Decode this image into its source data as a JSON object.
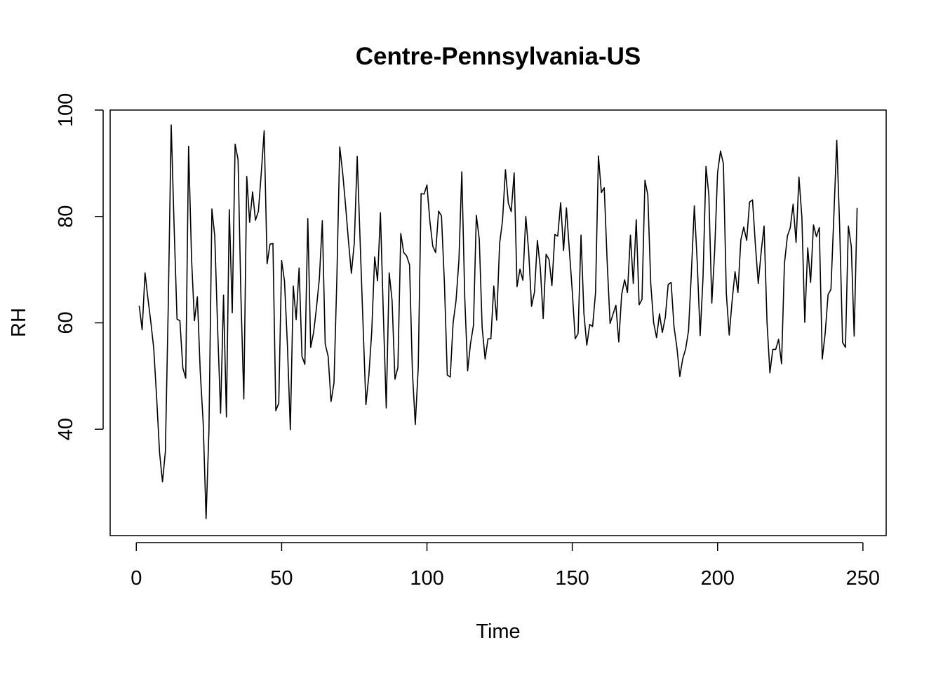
{
  "chart_data": {
    "type": "line",
    "title": "Centre-Pennsylvania-US",
    "xlabel": "Time",
    "ylabel": "RH",
    "xlim": [
      -9,
      258
    ],
    "ylim": [
      20,
      100
    ],
    "xticks": [
      0,
      50,
      100,
      150,
      200,
      250
    ],
    "yticks": [
      40,
      60,
      80,
      100
    ],
    "grid": false,
    "series": [
      {
        "x": [
          1,
          2,
          3,
          4,
          5,
          6,
          7,
          8,
          9,
          10,
          11,
          12,
          13,
          14,
          15,
          16,
          17,
          18,
          19,
          20,
          21,
          22,
          23,
          24,
          25,
          26,
          27,
          28,
          29,
          30,
          31,
          32,
          33,
          34,
          35,
          36,
          37,
          38,
          39,
          40,
          41,
          42,
          43,
          44,
          45,
          46,
          47,
          48,
          49,
          50,
          51,
          52,
          53,
          54,
          55,
          56,
          57,
          58,
          59,
          60,
          61,
          62,
          63,
          64,
          65,
          66,
          67,
          68,
          69,
          70,
          71,
          72,
          73,
          74,
          75,
          76,
          77,
          78,
          79,
          80,
          81,
          82,
          83,
          84,
          85,
          86,
          87,
          88,
          89,
          90,
          91,
          92,
          93,
          94,
          95,
          96,
          97,
          98,
          99,
          100,
          101,
          102,
          103,
          104,
          105,
          106,
          107,
          108,
          109,
          110,
          111,
          112,
          113,
          114,
          115,
          116,
          117,
          118,
          119,
          120,
          121,
          122,
          123,
          124,
          125,
          126,
          127,
          128,
          129,
          130,
          131,
          132,
          133,
          134,
          135,
          136,
          137,
          138,
          139,
          140,
          141,
          142,
          143,
          144,
          145,
          146,
          147,
          148,
          149,
          150,
          151,
          152,
          153,
          154,
          155,
          156,
          157,
          158,
          159,
          160,
          161,
          162,
          163,
          164,
          165,
          166,
          167,
          168,
          169,
          170,
          171,
          172,
          173,
          174,
          175,
          176,
          177,
          178,
          179,
          180,
          181,
          182,
          183,
          184,
          185,
          186,
          187,
          188,
          189,
          190,
          191,
          192,
          193,
          194,
          195,
          196,
          197,
          198,
          199,
          200,
          201,
          202,
          203,
          204,
          205,
          206,
          207,
          208,
          209,
          210,
          211,
          212,
          213,
          214,
          215,
          216,
          217,
          218,
          219,
          220,
          221,
          222,
          223,
          224,
          225,
          226,
          227,
          228,
          229,
          230,
          231,
          232,
          233,
          234,
          235,
          236,
          237,
          238,
          239,
          240,
          241,
          242,
          243,
          244,
          245,
          246,
          247,
          248
        ],
        "values": [
          63.2,
          58.7,
          69.4,
          64.5,
          60.1,
          55.2,
          45.8,
          35.6,
          30.1,
          35.8,
          63.2,
          97.2,
          78.4,
          60.7,
          60.4,
          51.5,
          49.6,
          93.2,
          72.1,
          60.4,
          64.9,
          50.8,
          41.2,
          23.2,
          39.8,
          81.4,
          76.3,
          58.5,
          43.0,
          65.2,
          42.3,
          81.3,
          61.9,
          93.6,
          90.7,
          64.8,
          45.7,
          87.5,
          78.9,
          84.6,
          79.3,
          81.0,
          88.2,
          96.1,
          71.1,
          74.8,
          74.9,
          43.5,
          44.9,
          71.7,
          67.8,
          55.6,
          39.9,
          66.9,
          60.6,
          70.3,
          53.7,
          52.2,
          79.6,
          55.4,
          58.2,
          62.9,
          68.4,
          79.2,
          56.0,
          53.7,
          45.2,
          48.7,
          68.3,
          93.1,
          88.2,
          82.1,
          75.3,
          69.3,
          75.1,
          91.3,
          75.6,
          59.8,
          44.6,
          50.1,
          58.3,
          72.4,
          67.9,
          80.7,
          61.5,
          44.0,
          69.4,
          64.2,
          49.4,
          51.6,
          76.8,
          73.2,
          72.6,
          70.9,
          50.7,
          40.9,
          51.6,
          84.3,
          84.2,
          85.9,
          79.1,
          74.4,
          73.2,
          81.0,
          80.1,
          67.5,
          50.2,
          49.8,
          60.0,
          64.1,
          71.8,
          88.4,
          64.7,
          51.0,
          56.1,
          59.5,
          80.2,
          75.7,
          59.1,
          53.2,
          57.0,
          57.0,
          66.9,
          60.5,
          74.9,
          79.2,
          88.8,
          82.5,
          80.9,
          88.2,
          66.8,
          70.1,
          68.0,
          80.0,
          73.4,
          63.1,
          65.8,
          75.5,
          70.3,
          60.8,
          72.9,
          71.9,
          67.0,
          76.6,
          76.3,
          82.6,
          73.6,
          81.6,
          73.6,
          66.0,
          57.0,
          58.0,
          76.5,
          61.8,
          55.8,
          59.7,
          59.3,
          65.7,
          91.4,
          84.5,
          85.4,
          71.7,
          59.9,
          61.6,
          63.3,
          56.4,
          65.3,
          68.1,
          65.7,
          76.5,
          67.4,
          79.4,
          63.4,
          64.4,
          86.8,
          84.0,
          67.3,
          60.0,
          57.2,
          61.7,
          58.2,
          61.0,
          67.2,
          67.6,
          59.3,
          55.3,
          49.9,
          53.2,
          55.1,
          58.5,
          69.8,
          82.0,
          71.4,
          57.6,
          68.6,
          89.4,
          84.0,
          63.7,
          73.6,
          88.2,
          92.3,
          89.9,
          65.5,
          57.7,
          64.2,
          69.6,
          65.7,
          75.6,
          78.0,
          75.5,
          82.7,
          83.1,
          74.7,
          67.4,
          73.4,
          78.2,
          60.1,
          50.6,
          55.0,
          55.0,
          56.9,
          52.3,
          71.1,
          76.3,
          77.9,
          82.3,
          75.1,
          87.4,
          79.8,
          60.1,
          74.1,
          67.6,
          78.4,
          76.2,
          77.9,
          53.2,
          57.9,
          65.3,
          66.3,
          80.0,
          94.3,
          78.1,
          56.3,
          55.4,
          78.2,
          74.4,
          57.5,
          81.6
        ]
      }
    ]
  }
}
